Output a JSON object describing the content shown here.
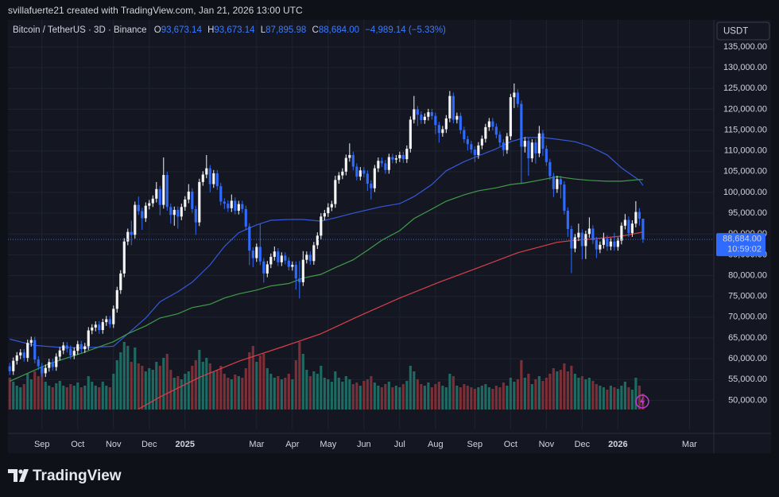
{
  "attribution": "svillafuerte21 created with TradingView.com, Jan 21, 2026 13:00 UTC",
  "footer": {
    "logo": "TradingView"
  },
  "chart_data": {
    "type": "candlestick",
    "title": "Bitcoin / TetherUS · 3D · Binance",
    "ohlc_header": [
      {
        "label": "O",
        "value": "93,673.14"
      },
      {
        "label": "H",
        "value": "93,673.14"
      },
      {
        "label": "L",
        "value": "87,895.98"
      },
      {
        "label": "C",
        "value": "88,684.00"
      }
    ],
    "change": "−4,989.14 (−5.33%)",
    "currency": "USDT",
    "last_price": {
      "value": 88684,
      "label": "88,684.00"
    },
    "countdown": "10:59:02",
    "up_color": "#f5f5f5",
    "down_color": "#2f6bff",
    "volume_up_color": "#1d6b62",
    "volume_down_color": "#7c2f37",
    "grid": true,
    "xlim": [
      -0.5,
      196.8
    ],
    "xticks": [
      {
        "value": 9,
        "label": "Sep"
      },
      {
        "value": 19,
        "label": "Oct"
      },
      {
        "value": 29,
        "label": "Nov"
      },
      {
        "value": 39,
        "label": "Dec"
      },
      {
        "value": 49,
        "label": "2025"
      },
      {
        "value": 69,
        "label": "Mar"
      },
      {
        "value": 79,
        "label": "Apr"
      },
      {
        "value": 89,
        "label": "May"
      },
      {
        "value": 99,
        "label": "Jun"
      },
      {
        "value": 109,
        "label": "Jul"
      },
      {
        "value": 119,
        "label": "Aug"
      },
      {
        "value": 130,
        "label": "Sep"
      },
      {
        "value": 140,
        "label": "Oct"
      },
      {
        "value": 150,
        "label": "Nov"
      },
      {
        "value": 160,
        "label": "Dec"
      },
      {
        "value": 170,
        "label": "2026"
      },
      {
        "value": 190,
        "label": "Mar"
      }
    ],
    "ylim": [
      43000,
      141500
    ],
    "yticks": [
      {
        "value": 50000,
        "label": "50,000.00"
      },
      {
        "value": 55000,
        "label": "55,000.00"
      },
      {
        "value": 60000,
        "label": "60,000.00"
      },
      {
        "value": 65000,
        "label": "65,000.00"
      },
      {
        "value": 70000,
        "label": "70,000.00"
      },
      {
        "value": 75000,
        "label": "75,000.00"
      },
      {
        "value": 80000,
        "label": "80,000.00"
      },
      {
        "value": 85000,
        "label": "85,000.00"
      },
      {
        "value": 90000,
        "label": "90,000.00"
      },
      {
        "value": 95000,
        "label": "95,000.00"
      },
      {
        "value": 100000,
        "label": "100,000.00"
      },
      {
        "value": 105000,
        "label": "105,000.00"
      },
      {
        "value": 110000,
        "label": "110,000.00"
      },
      {
        "value": 115000,
        "label": "115,000.00"
      },
      {
        "value": 120000,
        "label": "120,000.00"
      },
      {
        "value": 125000,
        "label": "125,000.00"
      },
      {
        "value": 130000,
        "label": "130,000.00"
      },
      {
        "value": 135000,
        "label": "135,000.00"
      }
    ],
    "open": [
      58200,
      57000,
      59500,
      60800,
      61500,
      60200,
      63800,
      64500,
      59800,
      58200,
      56500,
      57800,
      59200,
      58000,
      60500,
      62000,
      63200,
      62400,
      60800,
      61900,
      63500,
      62300,
      63000,
      66800,
      67500,
      68200,
      66900,
      68800,
      69500,
      68300,
      72000,
      76500,
      80500,
      88200,
      90500,
      89800,
      97000,
      95500,
      93800,
      96800,
      97400,
      98500,
      100800,
      97000,
      104200,
      96500,
      94600,
      95800,
      94200,
      96500,
      98300,
      100200,
      96000,
      92800,
      102500,
      104300,
      105800,
      102000,
      104600,
      101500,
      97800,
      97300,
      96200,
      98000,
      95600,
      97200,
      96000,
      91800,
      86000,
      84200,
      86900,
      83400,
      80500,
      82700,
      84500,
      85800,
      83200,
      84800,
      83600,
      82100,
      82600,
      79300,
      78400,
      83800,
      85000,
      83500,
      87300,
      89600,
      94200,
      95000,
      96400,
      97200,
      103000,
      104100,
      105000,
      108300,
      109000,
      106200,
      103800,
      105300,
      104500,
      102100,
      101000,
      105800,
      107600,
      107000,
      105400,
      108500,
      107900,
      108200,
      109000,
      108000,
      110500,
      117500,
      120000,
      118700,
      117400,
      118200,
      119300,
      118400,
      116200,
      114300,
      115200,
      117800,
      123200,
      117500,
      118400,
      115000,
      112800,
      111600,
      110300,
      109000,
      111300,
      112900,
      115700,
      117100,
      115800,
      113900,
      112000,
      110200,
      113500,
      122900,
      124000,
      121300,
      111000,
      112400,
      108200,
      112000,
      109400,
      114200,
      110500,
      107300,
      103900,
      100800,
      103200,
      101900,
      95600,
      91200,
      86500,
      89200,
      90300,
      87100,
      90000,
      91300,
      88500,
      86300,
      87400,
      88900,
      87000,
      88200,
      86900,
      88400,
      92000,
      93400,
      90200,
      92500,
      95300,
      93673.14
    ],
    "high": [
      59000,
      60300,
      61600,
      62300,
      62300,
      64600,
      65300,
      65300,
      60600,
      59000,
      58600,
      60000,
      60000,
      61300,
      62800,
      64000,
      64000,
      63200,
      62700,
      64300,
      64300,
      63800,
      67600,
      68300,
      69000,
      69000,
      69600,
      70300,
      70300,
      72800,
      77300,
      81300,
      89000,
      91300,
      93200,
      97800,
      99000,
      96300,
      97600,
      98200,
      99300,
      102500,
      101600,
      108400,
      105000,
      97300,
      96600,
      96600,
      97300,
      99100,
      102000,
      101000,
      96800,
      103300,
      105100,
      109000,
      106600,
      105400,
      105400,
      102300,
      98600,
      98100,
      99500,
      98800,
      98000,
      98000,
      96800,
      92600,
      86800,
      87700,
      92400,
      84200,
      83500,
      85300,
      87000,
      86600,
      85600,
      85600,
      84400,
      83400,
      83400,
      83500,
      85900,
      85800,
      85800,
      88100,
      90400,
      95000,
      95800,
      97400,
      98000,
      104000,
      104900,
      105800,
      109100,
      111800,
      109800,
      107000,
      106100,
      106100,
      105300,
      102900,
      106600,
      108400,
      108400,
      107800,
      109300,
      109300,
      109000,
      109800,
      109800,
      111300,
      118300,
      123200,
      120800,
      119500,
      119000,
      120100,
      120100,
      119200,
      117000,
      116000,
      118600,
      124400,
      124000,
      119200,
      119200,
      115800,
      113600,
      112400,
      111100,
      112100,
      113700,
      116500,
      117900,
      117900,
      116600,
      114700,
      112800,
      114300,
      123700,
      126200,
      124800,
      122100,
      113300,
      113200,
      112800,
      112800,
      116000,
      115000,
      111300,
      108100,
      104700,
      104000,
      104000,
      102700,
      96400,
      92000,
      90000,
      92500,
      91100,
      90800,
      94000,
      92100,
      89300,
      88200,
      90300,
      89700,
      89000,
      90300,
      89200,
      92800,
      94800,
      94200,
      93300,
      97900,
      96200,
      93673.14
    ],
    "low": [
      56100,
      56100,
      58600,
      59900,
      59300,
      59300,
      62900,
      58900,
      57300,
      55600,
      55600,
      56900,
      57100,
      57100,
      59600,
      61100,
      61500,
      59900,
      59900,
      61000,
      61400,
      61400,
      62100,
      65900,
      66600,
      66000,
      66000,
      67900,
      67400,
      67400,
      71100,
      75600,
      79600,
      87300,
      87300,
      88900,
      94600,
      91000,
      92900,
      95900,
      96500,
      97600,
      94500,
      96100,
      95600,
      92500,
      92000,
      91300,
      93300,
      95600,
      97400,
      95100,
      89800,
      91900,
      101600,
      103400,
      100000,
      101100,
      100600,
      96900,
      96000,
      95300,
      95300,
      94700,
      94700,
      95100,
      90900,
      82500,
      82000,
      83300,
      82500,
      78300,
      79600,
      81800,
      83600,
      82300,
      82300,
      82700,
      81200,
      81200,
      76600,
      74500,
      77500,
      82900,
      82600,
      82600,
      86400,
      88700,
      93300,
      94100,
      95500,
      96300,
      102100,
      103200,
      104100,
      107400,
      105300,
      102900,
      102900,
      103600,
      100400,
      98300,
      100100,
      104900,
      106100,
      104500,
      104500,
      107000,
      107000,
      107300,
      107100,
      107100,
      109600,
      116600,
      116000,
      116500,
      116500,
      117300,
      117500,
      114000,
      112000,
      113400,
      114300,
      116900,
      116600,
      116600,
      114100,
      111900,
      110100,
      109400,
      107300,
      108100,
      110400,
      112000,
      114800,
      114900,
      113000,
      111100,
      108700,
      109300,
      112600,
      120300,
      120400,
      102000,
      109600,
      104000,
      107300,
      106900,
      108500,
      108800,
      106400,
      103000,
      98900,
      99900,
      98600,
      94700,
      89300,
      80600,
      85600,
      88300,
      83900,
      84000,
      89100,
      87600,
      84200,
      85400,
      86500,
      85900,
      86100,
      86000,
      86000,
      87500,
      91100,
      89300,
      89300,
      91600,
      92000,
      87895.98
    ],
    "close": [
      57000,
      59500,
      60800,
      61500,
      60200,
      63800,
      64500,
      59800,
      58200,
      56500,
      57800,
      59200,
      58000,
      60500,
      62000,
      63200,
      62400,
      60800,
      61900,
      63500,
      62300,
      63000,
      66800,
      67500,
      68200,
      66900,
      68800,
      69500,
      68300,
      72000,
      76500,
      80500,
      88200,
      90500,
      89800,
      97000,
      95500,
      93800,
      96800,
      97400,
      98500,
      100800,
      97000,
      104200,
      96500,
      94600,
      95800,
      94200,
      96500,
      98300,
      100200,
      96000,
      92800,
      102500,
      104300,
      105800,
      102000,
      104600,
      101500,
      97800,
      97300,
      96200,
      98000,
      95600,
      97200,
      96000,
      91800,
      86000,
      84200,
      86900,
      83400,
      80500,
      82700,
      84500,
      85800,
      83200,
      84800,
      83600,
      82100,
      82600,
      79300,
      78400,
      83800,
      85000,
      83500,
      87300,
      89600,
      94200,
      95000,
      96400,
      97200,
      103000,
      104100,
      105000,
      108300,
      109000,
      106200,
      103800,
      105300,
      104500,
      102100,
      101000,
      105800,
      107600,
      107000,
      105400,
      108500,
      107900,
      108200,
      109000,
      108000,
      110500,
      117500,
      120000,
      118700,
      117400,
      118200,
      119300,
      118400,
      116200,
      114300,
      115200,
      117800,
      123200,
      117500,
      118400,
      115000,
      112800,
      111600,
      110300,
      109000,
      111300,
      112900,
      115700,
      117100,
      115800,
      113900,
      112000,
      110200,
      113500,
      122900,
      124000,
      121300,
      111000,
      112400,
      108200,
      112000,
      109400,
      114200,
      110500,
      107300,
      103900,
      100800,
      103200,
      101900,
      95600,
      91200,
      86500,
      89200,
      90300,
      87100,
      90000,
      91300,
      88500,
      86300,
      87400,
      88900,
      87000,
      88200,
      86900,
      88400,
      92000,
      93400,
      90200,
      92500,
      95300,
      93673.14,
      88684
    ],
    "volume": [
      40,
      35,
      30,
      28,
      32,
      45,
      38,
      48,
      42,
      50,
      35,
      30,
      28,
      33,
      36,
      30,
      28,
      32,
      30,
      34,
      28,
      30,
      42,
      35,
      30,
      28,
      35,
      30,
      28,
      45,
      62,
      72,
      85,
      80,
      60,
      78,
      58,
      55,
      48,
      52,
      50,
      60,
      55,
      65,
      70,
      50,
      40,
      42,
      38,
      45,
      48,
      55,
      62,
      75,
      60,
      65,
      58,
      48,
      50,
      55,
      45,
      40,
      38,
      44,
      42,
      40,
      52,
      72,
      80,
      60,
      68,
      70,
      52,
      45,
      40,
      42,
      38,
      40,
      45,
      38,
      62,
      85,
      70,
      50,
      42,
      48,
      45,
      55,
      40,
      38,
      35,
      48,
      40,
      35,
      42,
      38,
      32,
      34,
      30,
      36,
      38,
      42,
      34,
      30,
      28,
      32,
      35,
      28,
      30,
      28,
      32,
      36,
      55,
      48,
      38,
      32,
      30,
      34,
      28,
      32,
      35,
      30,
      28,
      45,
      42,
      30,
      28,
      32,
      30,
      28,
      26,
      28,
      30,
      32,
      28,
      26,
      30,
      28,
      34,
      30,
      40,
      35,
      38,
      62,
      40,
      45,
      32,
      38,
      42,
      36,
      40,
      45,
      52,
      48,
      50,
      58,
      48,
      55,
      45,
      40,
      42,
      38,
      40,
      36,
      32,
      30,
      28,
      25,
      30,
      28,
      26,
      30,
      35,
      28,
      25,
      40,
      30,
      20
    ],
    "moving_averages": [
      {
        "color": "#3558d8",
        "x": [
          0,
          7,
          13,
          20,
          29,
          33,
          38,
          42,
          47,
          51,
          56,
          60,
          64,
          69,
          73,
          78,
          82,
          87,
          91,
          96,
          100,
          104,
          109,
          113,
          118,
          122,
          127,
          131,
          136,
          140,
          144,
          149,
          153,
          158,
          162,
          167,
          171,
          176,
          177
        ],
        "values": [
          64700,
          63200,
          62800,
          62600,
          63000,
          66000,
          69800,
          73700,
          76100,
          78400,
          82600,
          87000,
          90300,
          92200,
          93300,
          93500,
          93500,
          93100,
          93900,
          95000,
          95800,
          96600,
          97300,
          99000,
          101900,
          105200,
          107400,
          108800,
          110500,
          112200,
          113200,
          113200,
          112800,
          112200,
          111100,
          109000,
          105900,
          102900,
          101700
        ]
      },
      {
        "color": "#3f9c4a",
        "x": [
          0,
          11,
          20,
          29,
          33,
          38,
          42,
          47,
          51,
          56,
          60,
          64,
          69,
          73,
          78,
          82,
          87,
          91,
          96,
          100,
          104,
          109,
          113,
          118,
          122,
          127,
          131,
          136,
          140,
          144,
          149,
          153,
          158,
          162,
          167,
          171,
          176,
          177
        ],
        "values": [
          54600,
          58800,
          61300,
          64100,
          66000,
          67900,
          69800,
          70800,
          72300,
          73100,
          74600,
          75600,
          76500,
          77500,
          78100,
          79400,
          80300,
          81900,
          83800,
          86100,
          88500,
          90800,
          93700,
          96000,
          97900,
          99400,
          100400,
          101100,
          101900,
          102300,
          103100,
          103800,
          103200,
          102900,
          102700,
          102700,
          103100,
          103100
        ]
      },
      {
        "color": "#d8404a",
        "x": [
          36,
          42,
          53,
          64,
          76,
          87,
          98,
          109,
          120,
          131,
          142,
          153,
          158,
          164,
          171,
          176,
          177
        ],
        "values": [
          47900,
          50800,
          55500,
          59400,
          62800,
          66000,
          70400,
          74600,
          78400,
          81900,
          85500,
          88000,
          88500,
          88900,
          89500,
          90300,
          90500
        ]
      }
    ]
  }
}
